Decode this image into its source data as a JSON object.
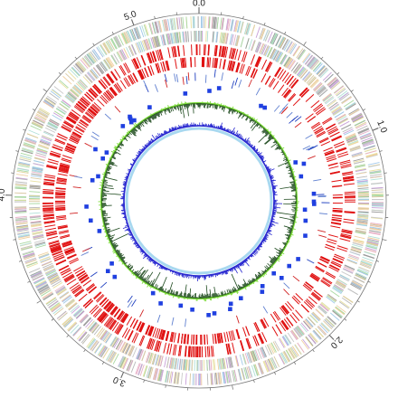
{
  "scale_labels": [
    {
      "text": "0.0",
      "mb": 0.0
    },
    {
      "text": "1.0",
      "mb": 1.0
    },
    {
      "text": "2.0",
      "mb": 2.0
    },
    {
      "text": "3.0",
      "mb": 3.0
    },
    {
      "text": "4.0",
      "mb": 4.0
    },
    {
      "text": "5.0",
      "mb": 5.0
    }
  ],
  "genome_length_mb": 5.3,
  "track_colors": {
    "cog_categories": [
      "#b9b9b9",
      "#9a9a9a",
      "#c8c8c8",
      "#a8d8a0",
      "#e8e0a0",
      "#a0c8e8",
      "#e8b0c8",
      "#c8a0d8",
      "#b0e0d8",
      "#d8c8a0",
      "#f0d0a0"
    ],
    "genes": "#e01010",
    "rna": [
      "#d02020",
      "#2040c0",
      "#6080d0"
    ],
    "islands": "#2040e0",
    "gc_content": "#1e4a1e",
    "gc_skew_positive": "#7ddc3a",
    "gc_skew_negative": "#2a2ad0",
    "inner_ring": "#a8d8f0"
  }
}
